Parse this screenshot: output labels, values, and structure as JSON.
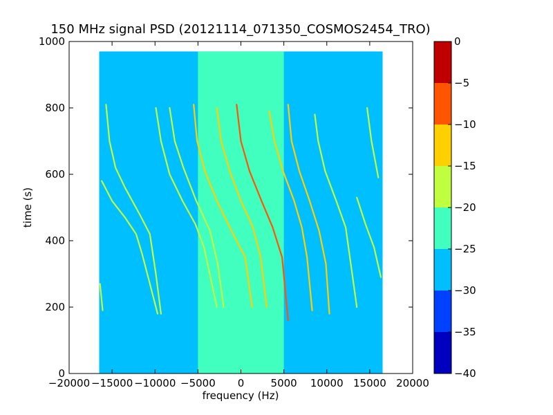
{
  "chart_data": {
    "type": "heatmap",
    "title": "150 MHz signal PSD (20121114_071350_COSMOS2454_TRO)",
    "xlabel": "frequency (Hz)",
    "ylabel": "time (s)",
    "xlim": [
      -20000,
      20000
    ],
    "ylim": [
      0,
      1000
    ],
    "x_ticks": [
      -20000,
      -15000,
      -10000,
      -5000,
      0,
      5000,
      10000,
      15000,
      20000
    ],
    "y_ticks": [
      0,
      200,
      400,
      600,
      800,
      1000
    ],
    "data_extent": {
      "x": [
        -16500,
        16500
      ],
      "y": [
        0,
        970
      ]
    },
    "background": {
      "base_level": -27.5,
      "noise_band_center_hz": 0,
      "noise_band_width_hz": 10000,
      "noise_band_level": -22.5
    },
    "colorbar": {
      "min": -40,
      "max": 0,
      "ticks": [
        0,
        -5,
        -10,
        -15,
        -20,
        -25,
        -30,
        -35,
        -40
      ],
      "tick_labels": [
        "0",
        "−5",
        "−10",
        "−15",
        "−20",
        "−25",
        "−30",
        "−35",
        "−40"
      ],
      "bands": [
        {
          "range": [
            -40,
            -35
          ],
          "color": "#0000bf"
        },
        {
          "range": [
            -35,
            -30
          ],
          "color": "#0040ff"
        },
        {
          "range": [
            -30,
            -25
          ],
          "color": "#00bfff"
        },
        {
          "range": [
            -25,
            -20
          ],
          "color": "#40ffbf"
        },
        {
          "range": [
            -20,
            -15
          ],
          "color": "#bfff40"
        },
        {
          "range": [
            -15,
            -10
          ],
          "color": "#ffd000"
        },
        {
          "range": [
            -10,
            -5
          ],
          "color": "#ff5500"
        },
        {
          "range": [
            -5,
            0
          ],
          "color": "#c00000"
        }
      ]
    },
    "traces": [
      {
        "level": -17,
        "points": [
          [
            -16200,
            580
          ],
          [
            -15000,
            520
          ],
          [
            -13500,
            470
          ],
          [
            -12200,
            420
          ],
          [
            -11500,
            360
          ],
          [
            -10700,
            280
          ],
          [
            -9700,
            180
          ]
        ]
      },
      {
        "level": -17,
        "points": [
          [
            -15700,
            810
          ],
          [
            -15300,
            700
          ],
          [
            -14600,
            620
          ],
          [
            -13500,
            560
          ],
          [
            -11800,
            480
          ],
          [
            -10600,
            420
          ],
          [
            -9900,
            300
          ],
          [
            -9300,
            180
          ]
        ]
      },
      {
        "level": -17,
        "points": [
          [
            -9900,
            800
          ],
          [
            -9300,
            700
          ],
          [
            -8300,
            600
          ],
          [
            -6800,
            520
          ],
          [
            -5300,
            450
          ],
          [
            -4300,
            380
          ],
          [
            -2800,
            200
          ]
        ]
      },
      {
        "level": -17,
        "points": [
          [
            -8300,
            800
          ],
          [
            -7700,
            700
          ],
          [
            -6700,
            620
          ],
          [
            -5200,
            520
          ],
          [
            -3600,
            430
          ],
          [
            -2700,
            330
          ],
          [
            -2000,
            200
          ]
        ]
      },
      {
        "level": -12,
        "points": [
          [
            -5500,
            810
          ],
          [
            -5100,
            700
          ],
          [
            -4200,
            610
          ],
          [
            -2800,
            520
          ],
          [
            -1100,
            430
          ],
          [
            500,
            350
          ],
          [
            1300,
            200
          ]
        ]
      },
      {
        "level": -12,
        "points": [
          [
            -2800,
            800
          ],
          [
            -2300,
            700
          ],
          [
            -1300,
            610
          ],
          [
            0,
            520
          ],
          [
            1400,
            440
          ],
          [
            2300,
            350
          ],
          [
            3000,
            200
          ]
        ]
      },
      {
        "level": -8,
        "points": [
          [
            -500,
            810
          ],
          [
            0,
            700
          ],
          [
            1000,
            610
          ],
          [
            2400,
            520
          ],
          [
            3700,
            440
          ],
          [
            4800,
            350
          ],
          [
            5500,
            160
          ]
        ]
      },
      {
        "level": -12,
        "points": [
          [
            3300,
            790
          ],
          [
            3900,
            700
          ],
          [
            4900,
            610
          ],
          [
            6200,
            520
          ],
          [
            7100,
            440
          ],
          [
            7700,
            350
          ],
          [
            8300,
            190
          ]
        ]
      },
      {
        "level": -12,
        "points": [
          [
            5500,
            810
          ],
          [
            5900,
            700
          ],
          [
            6800,
            610
          ],
          [
            8000,
            520
          ],
          [
            9100,
            430
          ],
          [
            9900,
            330
          ],
          [
            10300,
            180
          ]
        ]
      },
      {
        "level": -17,
        "points": [
          [
            8600,
            780
          ],
          [
            9000,
            700
          ],
          [
            9800,
            610
          ],
          [
            11100,
            520
          ],
          [
            12200,
            440
          ],
          [
            12800,
            330
          ],
          [
            13500,
            200
          ]
        ]
      },
      {
        "level": -17,
        "points": [
          [
            14700,
            800
          ],
          [
            15200,
            700
          ],
          [
            16000,
            590
          ]
        ]
      },
      {
        "level": -17,
        "points": [
          [
            13500,
            530
          ],
          [
            14500,
            450
          ],
          [
            15500,
            380
          ],
          [
            16300,
            290
          ]
        ]
      },
      {
        "level": -17,
        "points": [
          [
            -16400,
            270
          ],
          [
            -16100,
            190
          ]
        ]
      }
    ]
  }
}
